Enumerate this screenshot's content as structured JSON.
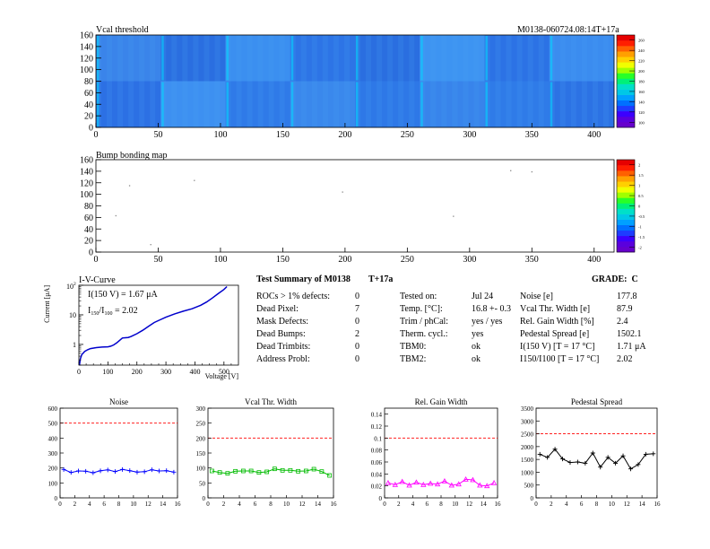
{
  "module_id": "M0138-060724.08:14T+17a",
  "vcal_threshold": {
    "title": "Vcal threshold",
    "x_ticks": [
      0,
      50,
      100,
      150,
      200,
      250,
      300,
      350,
      400
    ],
    "y_ticks": [
      0,
      20,
      40,
      60,
      80,
      100,
      120,
      140,
      160
    ],
    "x_range": [
      0,
      416
    ],
    "y_range": [
      0,
      160
    ],
    "colorbar_ticks": [
      "100",
      "120",
      "140",
      "160",
      "180",
      "200",
      "220",
      "240",
      "260"
    ],
    "colorbar_colors": [
      "#6600cc",
      "#5a00dd",
      "#3c00ff",
      "#1e3cff",
      "#0070ff",
      "#00a0ff",
      "#00c8e6",
      "#00e0c8",
      "#00f078",
      "#28ff28",
      "#a0ff00",
      "#f0ff00",
      "#ffd000",
      "#ffa000",
      "#ff6000",
      "#ff1e00",
      "#e60000"
    ]
  },
  "bump_bonding": {
    "title": "Bump bonding map",
    "x_ticks": [
      0,
      50,
      100,
      150,
      200,
      250,
      300,
      350,
      400
    ],
    "y_ticks": [
      0,
      20,
      40,
      60,
      80,
      100,
      120,
      140,
      160
    ],
    "x_range": [
      0,
      416
    ],
    "y_range": [
      0,
      160
    ],
    "colorbar_ticks": [
      "-2",
      "-1.5",
      "-1",
      "-0.5",
      "0",
      "0.5",
      "1",
      "1.5",
      "2"
    ],
    "points": [
      [
        27,
        115
      ],
      [
        44,
        13
      ],
      [
        79,
        124
      ],
      [
        198,
        104
      ],
      [
        287,
        62
      ],
      [
        333,
        141
      ],
      [
        350,
        139
      ],
      [
        16,
        63
      ]
    ]
  },
  "iv_curve": {
    "title": "I-V-Curve",
    "xlabel": "Voltage [V]",
    "ylabel": "Current [μA]",
    "x_ticks": [
      0,
      100,
      200,
      300,
      400,
      500
    ],
    "y_tick_labels": [
      "1",
      "10"
    ],
    "y_top_label": "10",
    "y_top_exp": "2",
    "annotation1": "I(150 V) = 1.67 μA",
    "annotation2_pre": "I",
    "annotation2_sub1": "150",
    "annotation2_mid": "/I",
    "annotation2_sub2": "100",
    "annotation2_post": " = 2.02",
    "x": [
      2,
      5,
      10,
      20,
      30,
      40,
      60,
      80,
      100,
      110,
      120,
      130,
      140,
      150,
      160,
      170,
      180,
      200,
      220,
      240,
      260,
      280,
      300,
      330,
      360,
      390,
      420,
      440,
      460,
      480,
      500,
      510
    ],
    "y": [
      0.2,
      0.32,
      0.45,
      0.58,
      0.66,
      0.72,
      0.78,
      0.81,
      0.83,
      0.87,
      0.96,
      1.12,
      1.35,
      1.65,
      1.68,
      1.72,
      1.85,
      2.3,
      3.0,
      4.1,
      5.5,
      6.8,
      8.3,
      10.8,
      13.3,
      16.0,
      21.0,
      27.0,
      37.0,
      52.0,
      72.0,
      90.0
    ]
  },
  "summary": {
    "heading": "Test Summary of M0138",
    "heading2": "T+17a",
    "grade_label": "GRADE:",
    "grade_value": "C",
    "left": [
      {
        "label": "ROCs > 1% defects:",
        "value": "0"
      },
      {
        "label": "Dead Pixel:",
        "value": "7"
      },
      {
        "label": "Mask Defects:",
        "value": "0"
      },
      {
        "label": "Dead Bumps:",
        "value": "2"
      },
      {
        "label": "Dead Trimbits:",
        "value": "0"
      },
      {
        "label": "Address Probl:",
        "value": "0"
      }
    ],
    "middle": [
      {
        "label": "Tested on:",
        "value": "Jul 24"
      },
      {
        "label": "Temp. [°C]:",
        "value": "16.8 +- 0.3"
      },
      {
        "label": "Trim / phCal:",
        "value": "yes / yes"
      },
      {
        "label": "Therm. cycl.:",
        "value": "yes"
      },
      {
        "label": "TBM0:",
        "value": "ok"
      },
      {
        "label": "TBM2:",
        "value": "ok"
      }
    ],
    "right": [
      {
        "label": "Noise [e]",
        "value": "177.8"
      },
      {
        "label": "Vcal Thr. Width [e]",
        "value": "87.9"
      },
      {
        "label": "Rel. Gain Width [%]",
        "value": "2.4"
      },
      {
        "label": "Pedestal Spread [e]",
        "value": "1502.1"
      },
      {
        "label": "I(150 V) [T = 17 °C]",
        "value": "1.71 μA"
      },
      {
        "label": "I150/I100 [T = 17 °C]",
        "value": "2.02"
      }
    ]
  },
  "chart_data": [
    {
      "type": "line",
      "title": "Noise",
      "x": [
        0,
        1,
        2,
        3,
        4,
        5,
        6,
        7,
        8,
        9,
        10,
        11,
        12,
        13,
        14,
        15
      ],
      "values": [
        190,
        170,
        180,
        178,
        168,
        181,
        187,
        176,
        190,
        182,
        172,
        175,
        188,
        180,
        182,
        172
      ],
      "ylim": [
        0,
        600
      ],
      "y_ticks": [
        0,
        100,
        200,
        300,
        400,
        500,
        600
      ],
      "xlim": [
        0,
        16
      ],
      "x_ticks": [
        0,
        2,
        4,
        6,
        8,
        10,
        12,
        14,
        16
      ],
      "threshold": 500,
      "color": "#0000ff",
      "marker": "star"
    },
    {
      "type": "line",
      "title": "Vcal Thr. Width",
      "x": [
        0,
        1,
        2,
        3,
        4,
        5,
        6,
        7,
        8,
        9,
        10,
        11,
        12,
        13,
        14,
        15
      ],
      "values": [
        90,
        85,
        82,
        89,
        90,
        90,
        85,
        87,
        97,
        92,
        92,
        89,
        90,
        96,
        88,
        75
      ],
      "ylim": [
        0,
        300
      ],
      "y_ticks": [
        0,
        50,
        100,
        150,
        200,
        250,
        300
      ],
      "xlim": [
        0,
        16
      ],
      "x_ticks": [
        0,
        2,
        4,
        6,
        8,
        10,
        12,
        14,
        16
      ],
      "threshold": 200,
      "color": "#00bb00",
      "marker": "square"
    },
    {
      "type": "line",
      "title": "Rel. Gain Width",
      "x": [
        0,
        1,
        2,
        3,
        4,
        5,
        6,
        7,
        8,
        9,
        10,
        11,
        12,
        13,
        14,
        15
      ],
      "values": [
        0.025,
        0.022,
        0.027,
        0.021,
        0.026,
        0.022,
        0.024,
        0.023,
        0.028,
        0.021,
        0.023,
        0.031,
        0.03,
        0.021,
        0.02,
        0.025
      ],
      "ylim": [
        0,
        0.15
      ],
      "y_ticks": [
        0,
        0.02,
        0.04,
        0.06,
        0.08,
        0.1,
        0.12,
        0.14
      ],
      "xlim": [
        0,
        16
      ],
      "x_ticks": [
        0,
        2,
        4,
        6,
        8,
        10,
        12,
        14,
        16
      ],
      "threshold": 0.1,
      "color": "#ff00ff",
      "marker": "triangle"
    },
    {
      "type": "line",
      "title": "Pedestal Spread",
      "x": [
        0,
        1,
        2,
        3,
        4,
        5,
        6,
        7,
        8,
        9,
        10,
        11,
        12,
        13,
        14,
        15
      ],
      "values": [
        1700,
        1580,
        1900,
        1520,
        1380,
        1400,
        1350,
        1750,
        1200,
        1580,
        1350,
        1640,
        1130,
        1300,
        1700,
        1720
      ],
      "ylim": [
        0,
        3500
      ],
      "y_ticks": [
        0,
        500,
        1000,
        1500,
        2000,
        2500,
        3000,
        3500
      ],
      "xlim": [
        0,
        16
      ],
      "x_ticks": [
        0,
        2,
        4,
        6,
        8,
        10,
        12,
        14,
        16
      ],
      "threshold": 2500,
      "color": "#000000",
      "marker": "star"
    }
  ]
}
